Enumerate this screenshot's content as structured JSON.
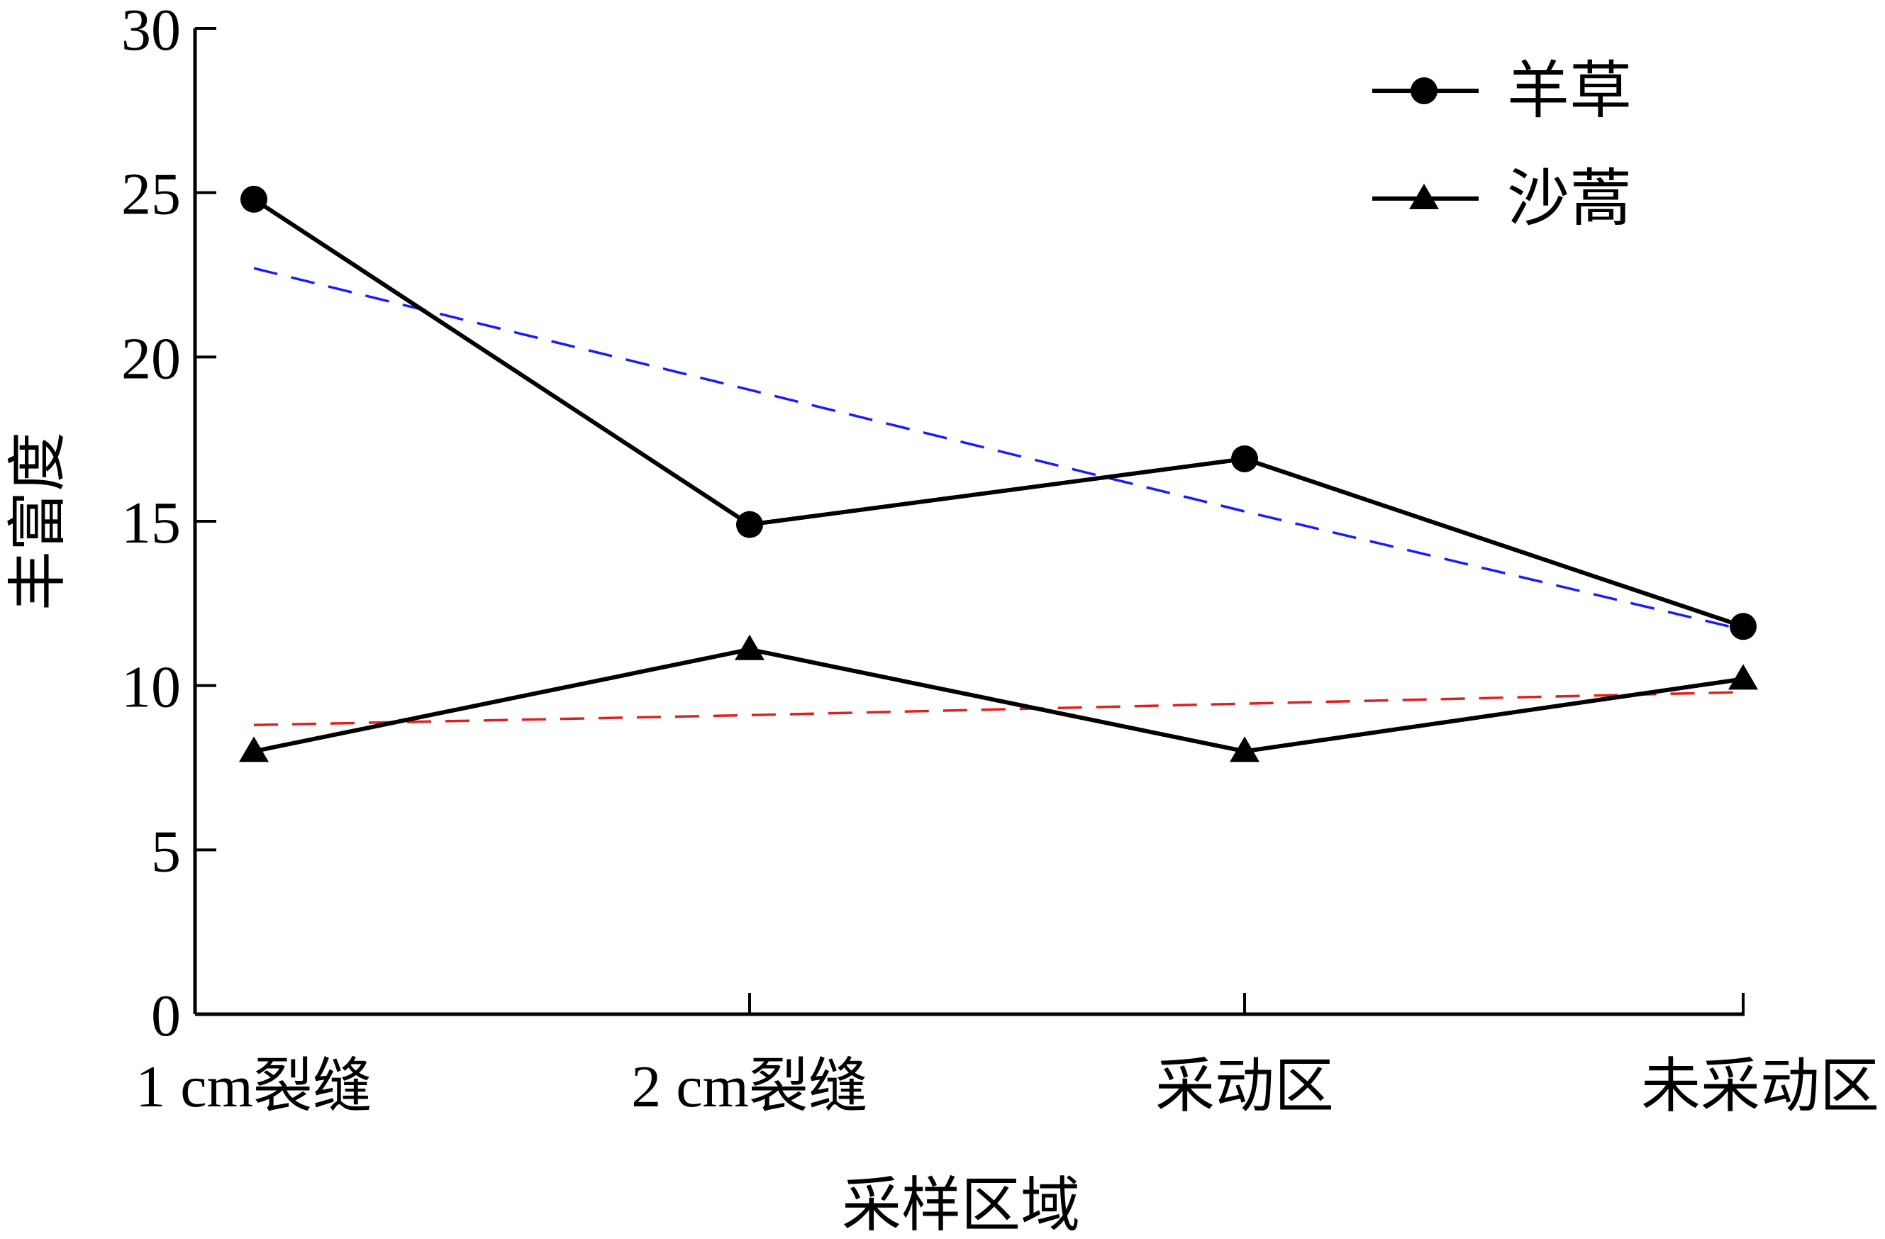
{
  "chart_data": {
    "type": "line",
    "title": "",
    "xlabel": "采样区域",
    "ylabel": "丰富度",
    "categories": [
      "1 cm裂缝",
      "2 cm裂缝",
      "采动区",
      "未采动区"
    ],
    "ylim": [
      0,
      30
    ],
    "yticks": [
      "0",
      "5",
      "10",
      "15",
      "20",
      "25",
      "30"
    ],
    "grid": false,
    "legend_position": "top-right",
    "series": [
      {
        "name": "羊草",
        "marker": "circle",
        "color": "#000000",
        "values": [
          24.8,
          14.9,
          16.9,
          11.8
        ]
      },
      {
        "name": "沙蒿",
        "marker": "triangle",
        "color": "#000000",
        "values": [
          8.0,
          11.1,
          8.0,
          10.2
        ]
      }
    ],
    "trendlines": [
      {
        "of": "羊草",
        "color": "#1a1aff",
        "style": "dashed",
        "values": [
          22.7,
          19.0,
          15.3,
          11.7
        ]
      },
      {
        "of": "沙蒿",
        "color": "#e02020",
        "style": "dashed",
        "values": [
          8.8,
          9.1,
          9.45,
          9.8
        ]
      }
    ]
  }
}
